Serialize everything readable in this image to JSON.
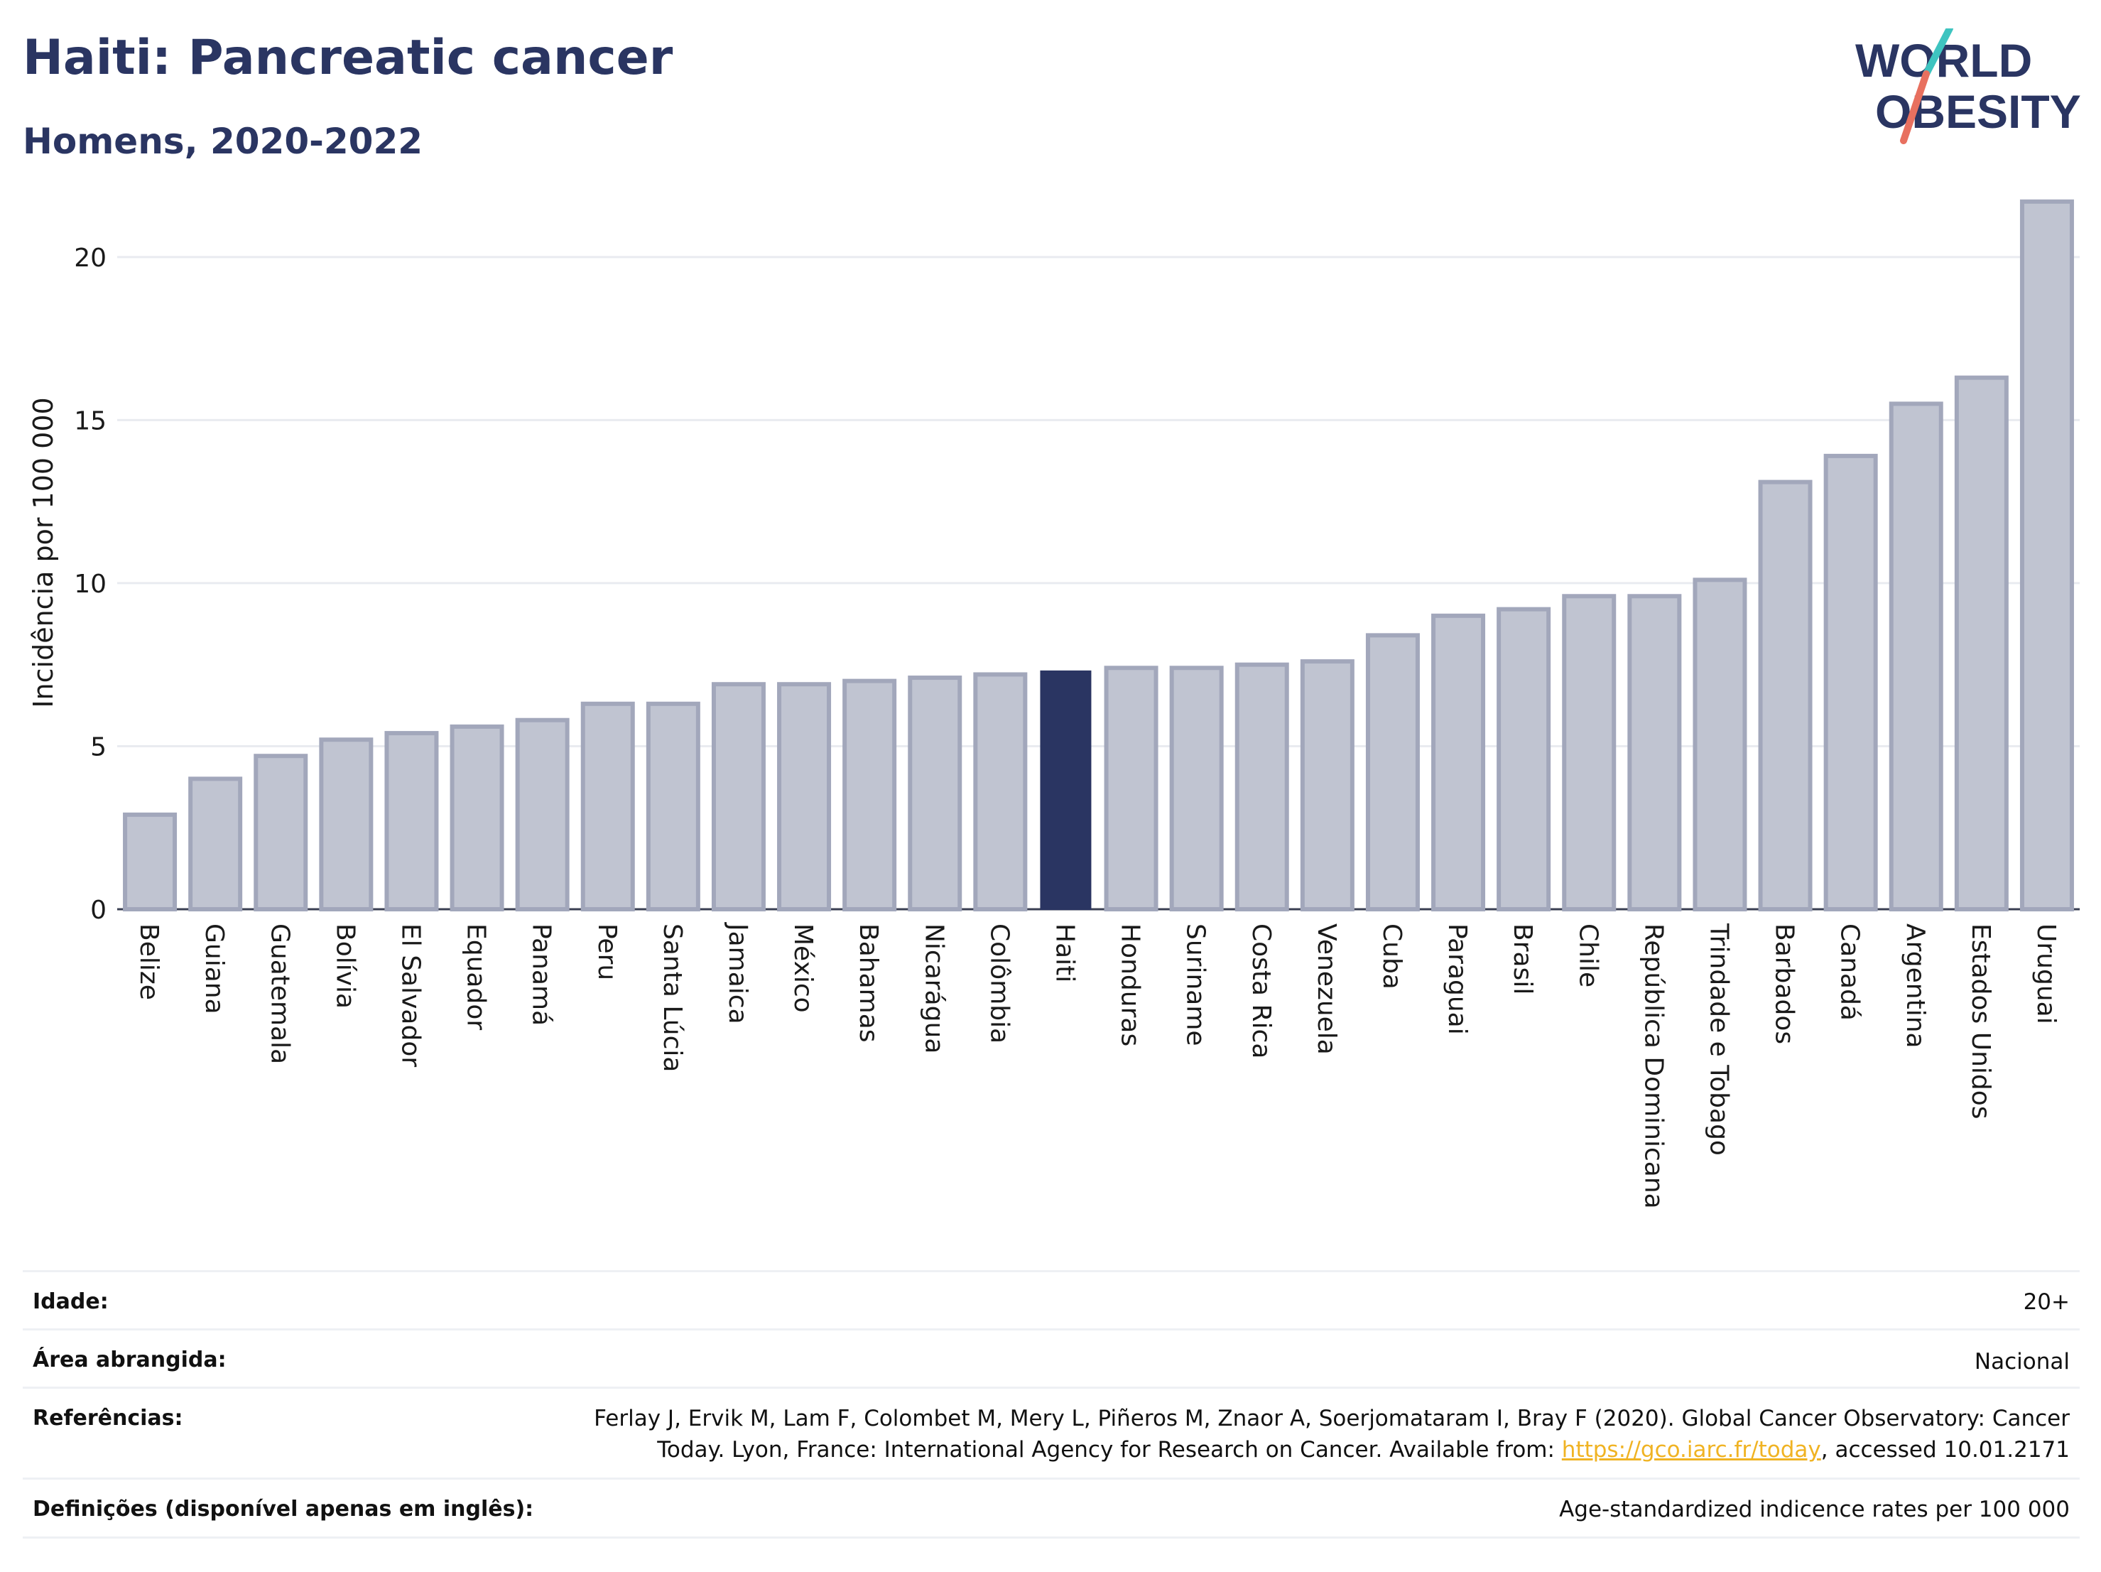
{
  "header": {
    "title": "Haiti: Pancreatic cancer",
    "subtitle": "Homens, 2020-2022",
    "logo_line1": "WORLD",
    "logo_line2": "OBESITY"
  },
  "colors": {
    "highlight": "#2a3562",
    "bar_fill": "#c0c4d1",
    "bar_stroke": "#a2a7bb",
    "title": "#2a3562",
    "logo_teal": "#3ec4c0",
    "logo_coral": "#e8705f"
  },
  "chart_data": {
    "type": "bar",
    "title": "Haiti: Pancreatic cancer",
    "subtitle": "Homens, 2020-2022",
    "ylabel": "Incidência por 100 000",
    "xlabel": "",
    "ylim": [
      0,
      22
    ],
    "yticks": [
      0,
      5,
      10,
      15,
      20
    ],
    "grid": true,
    "highlight": "Haiti",
    "categories": [
      "Belize",
      "Guiana",
      "Guatemala",
      "Bolívia",
      "El Salvador",
      "Equador",
      "Panamá",
      "Peru",
      "Santa Lúcia",
      "Jamaica",
      "México",
      "Bahamas",
      "Nicarágua",
      "Colômbia",
      "Haiti",
      "Honduras",
      "Suriname",
      "Costa Rica",
      "Venezuela",
      "Cuba",
      "Paraguai",
      "Brasil",
      "Chile",
      "República Dominicana",
      "Trindade e Tobago",
      "Barbados",
      "Canadá",
      "Argentina",
      "Estados Unidos",
      "Uruguai"
    ],
    "values": [
      2.9,
      4.0,
      4.7,
      5.2,
      5.4,
      5.6,
      5.8,
      6.3,
      6.3,
      6.9,
      6.9,
      7.0,
      7.1,
      7.2,
      7.3,
      7.4,
      7.4,
      7.5,
      7.6,
      8.4,
      9.0,
      9.2,
      9.6,
      9.6,
      10.1,
      13.1,
      13.9,
      15.5,
      16.3,
      21.7
    ]
  },
  "info": {
    "age_label": "Idade:",
    "age_value": "20+",
    "area_label": "Área abrangida:",
    "area_value": "Nacional",
    "ref_label": "Referências:",
    "ref_line1": "Ferlay J, Ervik M, Lam F, Colombet M, Mery L, Piñeros M, Znaor A, Soerjomataram I, Bray F (2020). Global Cancer Observatory: Cancer",
    "ref_line2_pre": "Today. Lyon, France: International Agency for Research on Cancer. Available from: ",
    "ref_link": "https://gco.iarc.fr/today",
    "ref_line2_post": ", accessed 10.01.2171",
    "def_label": "Definições (disponível apenas em inglês):",
    "def_value": "Age-standardized indicence rates per 100 000"
  }
}
